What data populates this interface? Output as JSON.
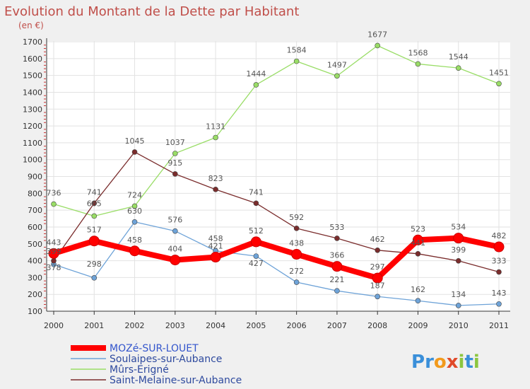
{
  "chart_data": {
    "type": "line",
    "title": "Evolution du Montant de la Dette par Habitant",
    "subtitle": "(en €)",
    "categories": [
      "2000",
      "2001",
      "2002",
      "2003",
      "2004",
      "2005",
      "2006",
      "2007",
      "2008",
      "2009",
      "2010",
      "2011"
    ],
    "ylim": [
      100,
      1700
    ],
    "yticks": [
      100,
      200,
      300,
      400,
      500,
      600,
      700,
      800,
      900,
      1000,
      1100,
      1200,
      1300,
      1400,
      1500,
      1600,
      1700
    ],
    "grid": true,
    "legend_position": "bottom-left",
    "series": [
      {
        "name": "MOZé-SUR-LOUET",
        "color": "#ff0000",
        "values": [
          443,
          517,
          458,
          404,
          421,
          512,
          438,
          366,
          297,
          523,
          534,
          482
        ]
      },
      {
        "name": "Soulaipes-sur-Aubance",
        "color": "#6ea3d8",
        "values": [
          378,
          298,
          630,
          576,
          458,
          427,
          272,
          221,
          187,
          162,
          134,
          143
        ]
      },
      {
        "name": "Mûrs-Erigné",
        "color": "#99dd66",
        "values": [
          736,
          665,
          724,
          1037,
          1131,
          1444,
          1584,
          1497,
          1677,
          1568,
          1544,
          1451
        ]
      },
      {
        "name": "Saint-Melaine-sur-Aubance",
        "color": "#7a2c2c",
        "values": [
          399,
          741,
          1045,
          915,
          823,
          741,
          592,
          533,
          462,
          441,
          399,
          333
        ]
      }
    ]
  },
  "brand": {
    "name": "Proxiti",
    "letters": [
      "P",
      "r",
      "o",
      "x",
      "i",
      "t",
      "i"
    ],
    "colors": [
      "#3a8fd9",
      "#3a8fd9",
      "#f29a1c",
      "#e04a2a",
      "#8cc63f",
      "#3a8fd9",
      "#8cc63f"
    ]
  }
}
